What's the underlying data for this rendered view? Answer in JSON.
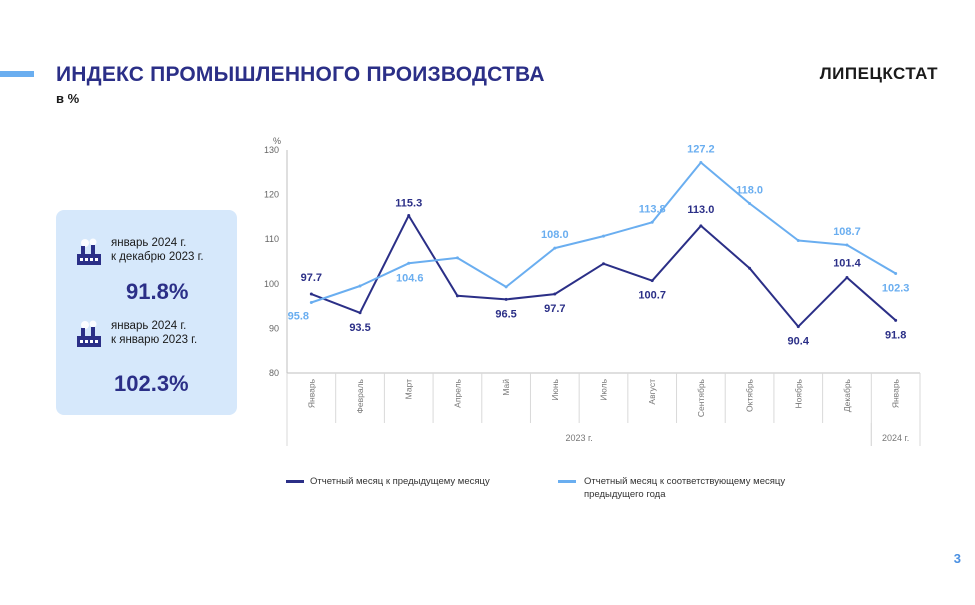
{
  "header": {
    "title": "ИНДЕКС ПРОМЫШЛЕННОГО  ПРОИЗВОДСТВА",
    "subtitle": "в %",
    "brand": "ЛИПЕЦКСТАТ",
    "page_number": "3"
  },
  "kpis": [
    {
      "line1": "январь 2024 г.",
      "line2": "к декабрю 2023 г.",
      "value": "91.8%"
    },
    {
      "line1": "январь 2024 г.",
      "line2": "к январю 2023 г.",
      "value": "102.3%"
    }
  ],
  "colors": {
    "dark_series": "#2b2f87",
    "light_series": "#6aaef0",
    "panel_bg": "#d6e8fb"
  },
  "chart_data": {
    "type": "line",
    "y_unit_label": "%",
    "ylim": [
      80,
      130
    ],
    "yticks": [
      80,
      90,
      100,
      110,
      120,
      130
    ],
    "categories": [
      "Январь",
      "Февраль",
      "Март",
      "Апрель",
      "Май",
      "Июнь",
      "Июль",
      "Август",
      "Сентябрь",
      "Октябрь",
      "Ноябрь",
      "Декабрь",
      "Январь"
    ],
    "year_groups": [
      {
        "label": "2023 г.",
        "from": 0,
        "to": 11
      },
      {
        "label": "2024  г.",
        "from": 12,
        "to": 12
      }
    ],
    "series": [
      {
        "name": "Отчетный  месяц к предыдущему месяцу",
        "color": "#2b2f87",
        "values": [
          97.7,
          93.5,
          115.3,
          97.3,
          96.5,
          97.7,
          104.5,
          100.7,
          113.0,
          103.5,
          90.4,
          101.4,
          91.8
        ],
        "labels": [
          "97.7",
          "93.5",
          "115.3",
          null,
          "96.5",
          "97.7",
          null,
          "100.7",
          "113.0",
          null,
          "90.4",
          "101.4",
          "91.8"
        ]
      },
      {
        "name": "Отчетный  месяц к соответствующему  месяцу предыдущего года",
        "color": "#6aaef0",
        "values": [
          95.8,
          99.5,
          104.6,
          105.8,
          99.3,
          108.0,
          110.7,
          113.8,
          127.2,
          118.0,
          109.7,
          108.7,
          102.3
        ],
        "labels": [
          "95.8",
          null,
          "104.6",
          null,
          null,
          "108.0",
          null,
          "113.8",
          "127.2",
          "118.0",
          null,
          "108.7",
          "102.3"
        ]
      }
    ],
    "legend": [
      {
        "text": "Отчетный  месяц к предыдущему месяцу"
      },
      {
        "line1": "Отчетный  месяц к соответствующему  месяцу",
        "line2": "предыдущего года"
      }
    ]
  }
}
